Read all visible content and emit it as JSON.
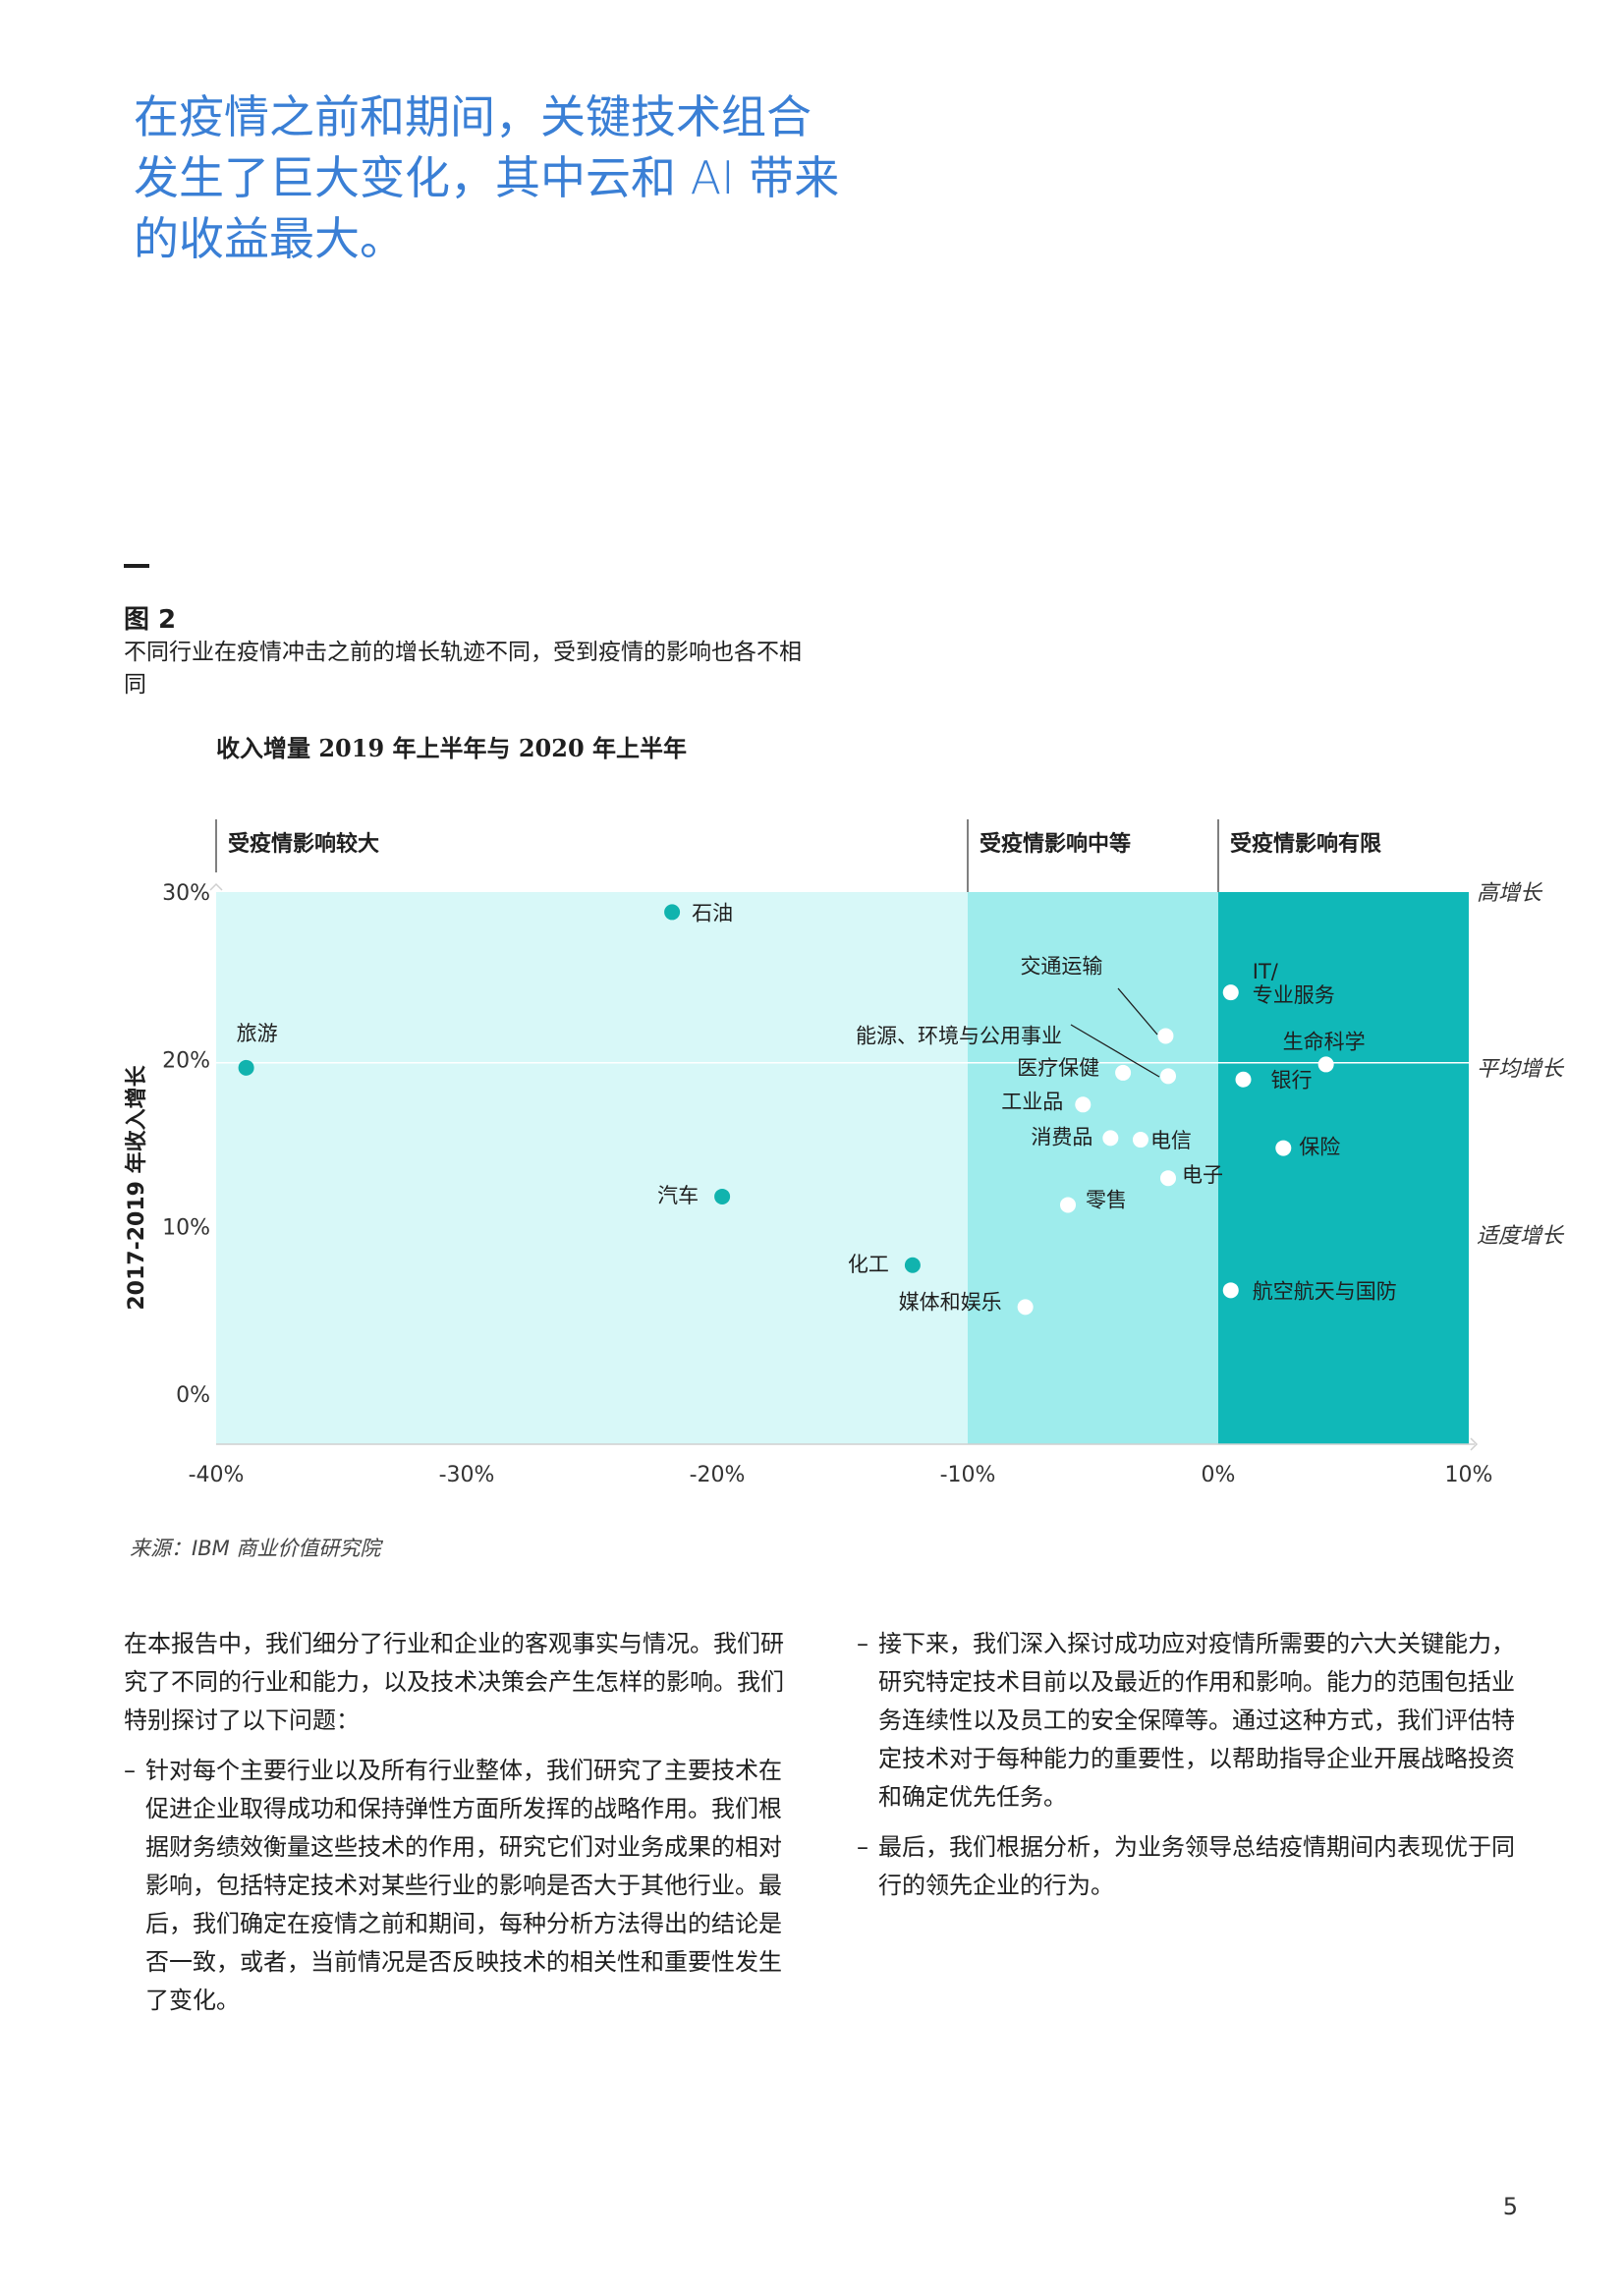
{
  "headline": "在疫情之前和期间，关键技术组合发生了巨大变化，其中云和 AI 带来的收益最大。",
  "figure": {
    "label": "图 2",
    "caption": "不同行业在疫情冲击之前的增长轨迹不同，受到疫情的影响也各不相同",
    "source": "来源：IBM 商业价值研究院"
  },
  "chart_data": {
    "type": "scatter",
    "title": "收入增量 2019 年上半年与 2020 年上半年",
    "xlabel": "",
    "ylabel": "2017-2019 年收入增长",
    "xlim": [
      -40,
      10
    ],
    "ylim": [
      -3,
      30
    ],
    "x_ticks": [
      "-40%",
      "-30%",
      "-20%",
      "-10%",
      "0%",
      "10%"
    ],
    "y_ticks": [
      "0%",
      "10%",
      "20%",
      "30%"
    ],
    "zones": [
      {
        "label": "受疫情影响较大",
        "from": -40,
        "to": -10,
        "color": "#d8f8f8"
      },
      {
        "label": "受疫情影响中等",
        "from": -10,
        "to": 0,
        "color": "#9eecec"
      },
      {
        "label": "受疫情影响有限",
        "from": 0,
        "to": 10,
        "color": "#10b8b8"
      }
    ],
    "growth_labels": [
      {
        "label": "高增长",
        "y": 30
      },
      {
        "label": "平均增长",
        "y": 19.5
      },
      {
        "label": "适度增长",
        "y": 9.5
      }
    ],
    "average_line_y": 19.8,
    "points": [
      {
        "name": "石油",
        "x": -21.8,
        "y": 28.8,
        "color": "teal"
      },
      {
        "name": "旅游",
        "x": -38.8,
        "y": 19.5,
        "color": "teal"
      },
      {
        "name": "汽车",
        "x": -19.8,
        "y": 11.8,
        "color": "teal"
      },
      {
        "name": "化工",
        "x": -12.2,
        "y": 7.7,
        "color": "teal"
      },
      {
        "name": "媒体和娱乐",
        "x": -7.7,
        "y": 5.2,
        "color": "white"
      },
      {
        "name": "交通运输",
        "x": -2.1,
        "y": 21.4,
        "color": "white"
      },
      {
        "name": "能源、环境与公用事业",
        "x": -2.0,
        "y": 19.0,
        "color": "white"
      },
      {
        "name": "医疗保健",
        "x": -3.8,
        "y": 19.2,
        "color": "white"
      },
      {
        "name": "工业品",
        "x": -5.4,
        "y": 17.3,
        "color": "white"
      },
      {
        "name": "消费品",
        "x": -4.3,
        "y": 15.3,
        "color": "white"
      },
      {
        "name": "电信",
        "x": -3.1,
        "y": 15.2,
        "color": "white"
      },
      {
        "name": "电子",
        "x": -2.0,
        "y": 12.9,
        "color": "white"
      },
      {
        "name": "零售",
        "x": -6.0,
        "y": 11.3,
        "color": "white"
      },
      {
        "name": "IT/ 专业服务",
        "x": 0.5,
        "y": 24.0,
        "color": "white"
      },
      {
        "name": "生命科学",
        "x": 4.3,
        "y": 19.7,
        "color": "white"
      },
      {
        "name": "银行",
        "x": 1.0,
        "y": 18.8,
        "color": "white"
      },
      {
        "name": "保险",
        "x": 2.6,
        "y": 14.7,
        "color": "white"
      },
      {
        "name": "航空航天与国防",
        "x": 0.5,
        "y": 6.2,
        "color": "white"
      }
    ]
  },
  "body": {
    "left_intro": "在本报告中，我们细分了行业和企业的客观事实与情况。我们研究了不同的行业和能力，以及技术决策会产生怎样的影响。我们特别探讨了以下问题：",
    "left_bullet": "针对每个主要行业以及所有行业整体，我们研究了主要技术在促进企业取得成功和保持弹性方面所发挥的战略作用。我们根据财务绩效衡量这些技术的作用，研究它们对业务成果的相对影响，包括特定技术对某些行业的影响是否大于其他行业。最后，我们确定在疫情之前和期间，每种分析方法得出的结论是否一致，或者，当前情况是否反映技术的相关性和重要性发生了变化。",
    "right_bullet_1": "接下来，我们深入探讨成功应对疫情所需要的六大关键能力，研究特定技术目前以及最近的作用和影响。能力的范围包括业务连续性以及员工的安全保障等。通过这种方式，我们评估特定技术对于每种能力的重要性，以帮助指导企业开展战略投资和确定优先任务。",
    "right_bullet_2": "最后，我们根据分析，为业务领导总结疫情期间内表现优于同行的领先企业的行为。",
    "bullet_mark": "–"
  },
  "page_number": "5"
}
